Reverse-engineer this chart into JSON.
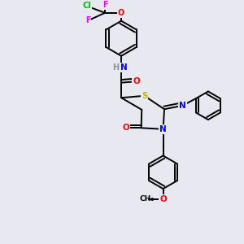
{
  "background_color": "#e8e8f0",
  "atom_colors": {
    "C": "#000000",
    "H": "#909090",
    "N": "#0000ff",
    "O": "#ff0000",
    "S": "#bbbb00",
    "F": "#ff00ff",
    "Cl": "#00bb00"
  },
  "bond_color": "#000000",
  "bond_width": 1.4,
  "figsize": [
    3.0,
    3.0
  ],
  "dpi": 100
}
